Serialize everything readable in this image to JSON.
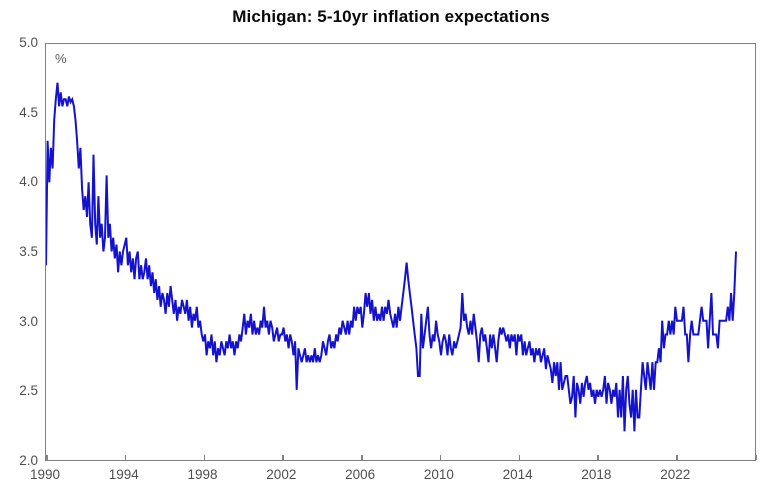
{
  "title": "Michigan: 5-10yr inflation expectations",
  "colors": {
    "line": "#1412cd",
    "axis": "#828282",
    "tick_label": "#4f4f4f",
    "title_text": "#0a0a0a",
    "background": "#ffffff"
  },
  "chart_data": {
    "type": "line",
    "title": "Michigan: 5-10yr inflation expectations",
    "xlabel": "",
    "ylabel": "%",
    "unit_label": "%",
    "xlim": [
      1990,
      2026
    ],
    "ylim": [
      2.0,
      5.0
    ],
    "x_ticks": [
      1990,
      1994,
      1998,
      2002,
      2006,
      2010,
      2014,
      2018,
      2022,
      2026
    ],
    "x_tick_labels": [
      "1990",
      "1994",
      "1998",
      "2002",
      "2006",
      "2010",
      "2014",
      "2018",
      "2022"
    ],
    "y_ticks": [
      2.0,
      2.5,
      3.0,
      3.5,
      4.0,
      4.5,
      5.0
    ],
    "grid": false,
    "legend_position": "none",
    "x_start": 1990.0,
    "x_step": 0.0833333,
    "series": [
      {
        "name": "Michigan 5-10yr inflation expectations, median (%, monthly)",
        "values": [
          3.4,
          4.3,
          4.0,
          4.25,
          4.1,
          4.45,
          4.6,
          4.72,
          4.55,
          4.65,
          4.55,
          4.6,
          4.6,
          4.55,
          4.62,
          4.58,
          4.6,
          4.55,
          4.45,
          4.3,
          4.1,
          4.25,
          3.95,
          3.8,
          3.9,
          3.75,
          4.0,
          3.7,
          3.6,
          4.2,
          3.7,
          3.55,
          3.9,
          3.6,
          3.7,
          3.5,
          3.6,
          4.05,
          3.6,
          3.7,
          3.5,
          3.6,
          3.45,
          3.55,
          3.35,
          3.5,
          3.4,
          3.5,
          3.55,
          3.6,
          3.4,
          3.5,
          3.35,
          3.45,
          3.3,
          3.45,
          3.5,
          3.3,
          3.4,
          3.3,
          3.35,
          3.45,
          3.3,
          3.4,
          3.25,
          3.35,
          3.2,
          3.3,
          3.15,
          3.25,
          3.1,
          3.2,
          3.15,
          3.05,
          3.2,
          3.1,
          3.25,
          3.15,
          3.05,
          3.15,
          3.0,
          3.1,
          3.05,
          3.15,
          3.1,
          3.05,
          3.15,
          3.0,
          3.1,
          2.95,
          3.05,
          3.0,
          3.1,
          2.95,
          3.0,
          2.9,
          2.85,
          2.9,
          2.75,
          2.85,
          2.8,
          2.9,
          2.75,
          2.85,
          2.7,
          2.8,
          2.75,
          2.85,
          2.8,
          2.75,
          2.85,
          2.8,
          2.9,
          2.8,
          2.85,
          2.75,
          2.85,
          2.8,
          2.9,
          2.85,
          2.95,
          3.05,
          2.9,
          3.0,
          2.95,
          3.05,
          2.9,
          3.0,
          2.9,
          2.95,
          2.9,
          3.0,
          2.95,
          3.1,
          2.95,
          3.0,
          2.9,
          3.0,
          2.95,
          2.85,
          2.9,
          2.95,
          2.85,
          2.9,
          2.9,
          2.95,
          2.85,
          2.9,
          2.8,
          2.9,
          2.85,
          2.75,
          2.85,
          2.5,
          2.8,
          2.75,
          2.7,
          2.75,
          2.8,
          2.7,
          2.75,
          2.7,
          2.75,
          2.7,
          2.8,
          2.7,
          2.75,
          2.7,
          2.75,
          2.85,
          2.8,
          2.75,
          2.85,
          2.9,
          2.8,
          2.85,
          2.8,
          2.9,
          2.85,
          2.95,
          2.9,
          3.0,
          2.95,
          2.9,
          3.0,
          2.9,
          3.0,
          2.95,
          3.1,
          3.0,
          3.1,
          3.05,
          3.1,
          2.95,
          3.05,
          3.2,
          3.1,
          3.2,
          3.05,
          3.15,
          3.0,
          3.1,
          3.0,
          3.05,
          3.0,
          3.1,
          3.0,
          3.1,
          3.05,
          3.15,
          3.05,
          3.0,
          2.95,
          3.05,
          2.95,
          3.1,
          3.0,
          3.1,
          3.2,
          3.3,
          3.42,
          3.3,
          3.2,
          3.1,
          3.0,
          2.9,
          2.8,
          2.6,
          2.6,
          3.05,
          2.8,
          2.9,
          3.0,
          3.1,
          2.9,
          2.8,
          2.9,
          2.85,
          3.0,
          2.9,
          2.85,
          2.75,
          2.85,
          2.9,
          2.85,
          2.75,
          2.9,
          2.8,
          2.75,
          2.85,
          2.8,
          2.85,
          2.9,
          2.95,
          3.2,
          3.0,
          3.05,
          2.95,
          2.9,
          3.0,
          2.9,
          3.05,
          2.95,
          2.85,
          2.7,
          2.9,
          2.95,
          2.85,
          2.9,
          2.8,
          2.7,
          2.9,
          2.8,
          2.9,
          2.8,
          2.7,
          2.85,
          2.95,
          2.9,
          2.95,
          2.9,
          2.85,
          2.9,
          2.8,
          2.9,
          2.85,
          2.9,
          2.75,
          2.9,
          2.85,
          2.9,
          2.75,
          2.85,
          2.75,
          2.8,
          2.85,
          2.75,
          2.8,
          2.7,
          2.8,
          2.75,
          2.8,
          2.7,
          2.75,
          2.8,
          2.65,
          2.75,
          2.7,
          2.65,
          2.55,
          2.7,
          2.6,
          2.7,
          2.5,
          2.7,
          2.5,
          2.55,
          2.6,
          2.6,
          2.5,
          2.4,
          2.45,
          2.6,
          2.3,
          2.55,
          2.5,
          2.4,
          2.55,
          2.45,
          2.55,
          2.6,
          2.5,
          2.55,
          2.45,
          2.5,
          2.4,
          2.5,
          2.45,
          2.5,
          2.45,
          2.5,
          2.6,
          2.4,
          2.55,
          2.5,
          2.4,
          2.5,
          2.45,
          2.55,
          2.3,
          2.5,
          2.3,
          2.6,
          2.2,
          2.5,
          2.6,
          2.4,
          2.3,
          2.5,
          2.2,
          2.5,
          2.3,
          2.3,
          2.5,
          2.7,
          2.6,
          2.5,
          2.7,
          2.6,
          2.5,
          2.7,
          2.5,
          2.7,
          2.7,
          2.8,
          2.7,
          3.0,
          2.8,
          2.9,
          2.9,
          3.0,
          2.9,
          3.0,
          2.9,
          3.1,
          3.0,
          3.0,
          3.0,
          3.0,
          3.1,
          2.9,
          2.9,
          2.7,
          2.9,
          3.0,
          2.9,
          2.9,
          2.9,
          2.9,
          3.0,
          3.1,
          3.0,
          3.0,
          3.0,
          2.8,
          3.0,
          3.2,
          2.9,
          2.9,
          2.9,
          2.8,
          3.0,
          3.0,
          3.0,
          3.0,
          3.0,
          3.1,
          3.0,
          3.2,
          3.0,
          3.2,
          3.5
        ]
      }
    ]
  }
}
